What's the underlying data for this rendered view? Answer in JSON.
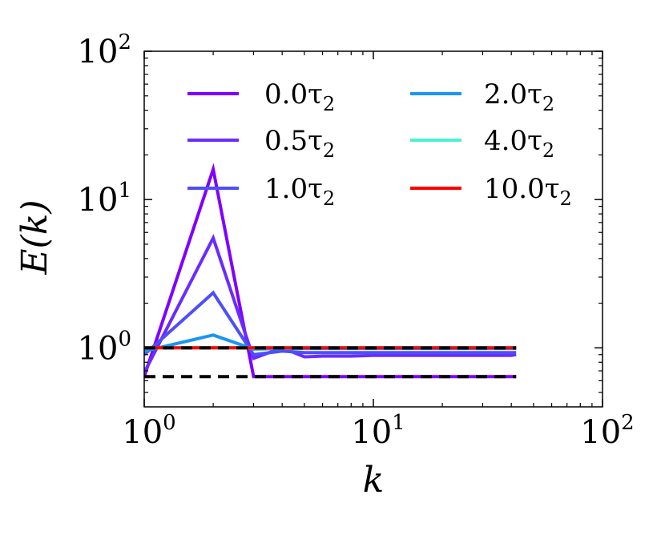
{
  "chart_data": {
    "type": "line",
    "title": "",
    "xlabel": "k",
    "ylabel": "E(k)",
    "x_scale": "log",
    "y_scale": "log",
    "xlim": [
      1,
      100
    ],
    "ylim": [
      0.4,
      100
    ],
    "grid": false,
    "legend_placement": "top",
    "legend_columns": 2,
    "x_ticks": [
      {
        "value": 1,
        "base": "10",
        "exp": "0"
      },
      {
        "value": 10,
        "base": "10",
        "exp": "1"
      },
      {
        "value": 100,
        "base": "10",
        "exp": "2"
      }
    ],
    "y_ticks": [
      {
        "value": 1,
        "base": "10",
        "exp": "0"
      },
      {
        "value": 10,
        "base": "10",
        "exp": "1"
      },
      {
        "value": 100,
        "base": "10",
        "exp": "2"
      }
    ],
    "x": [
      1,
      2,
      3,
      4,
      5,
      6,
      7,
      8,
      10,
      12,
      15,
      20,
      25,
      30,
      35,
      40,
      42
    ],
    "series": [
      {
        "name": "0.0τ2",
        "label_main": "0.0τ",
        "label_sub": "2",
        "color": "#7f00ff",
        "values": [
          0.64,
          16.0,
          0.64,
          0.64,
          0.64,
          0.64,
          0.64,
          0.64,
          0.64,
          0.64,
          0.64,
          0.64,
          0.64,
          0.64,
          0.64,
          0.64,
          0.64
        ]
      },
      {
        "name": "0.5τ2",
        "label_main": "0.5τ",
        "label_sub": "2",
        "color": "#6a2cff",
        "values": [
          0.68,
          5.5,
          0.85,
          1.0,
          0.87,
          0.88,
          0.88,
          0.88,
          0.89,
          0.89,
          0.89,
          0.89,
          0.89,
          0.89,
          0.89,
          0.89,
          0.9
        ]
      },
      {
        "name": "1.0τ2",
        "label_main": "1.0τ",
        "label_sub": "2",
        "color": "#4d50f5",
        "values": [
          0.9,
          2.35,
          0.9,
          0.95,
          0.93,
          0.93,
          0.93,
          0.93,
          0.93,
          0.93,
          0.93,
          0.93,
          0.93,
          0.93,
          0.93,
          0.93,
          0.93
        ]
      },
      {
        "name": "2.0τ2",
        "label_main": "2.0τ",
        "label_sub": "2",
        "color": "#1996f0",
        "values": [
          0.95,
          1.22,
          0.98,
          0.99,
          0.99,
          0.99,
          0.99,
          0.99,
          0.99,
          0.99,
          0.99,
          0.99,
          0.99,
          0.99,
          0.99,
          0.99,
          0.99
        ]
      },
      {
        "name": "4.0τ2",
        "label_main": "4.0τ",
        "label_sub": "2",
        "color": "#4ff0d2",
        "values": [
          1.0,
          1.0,
          1.0,
          1.0,
          1.0,
          1.0,
          1.0,
          1.0,
          1.0,
          1.0,
          1.0,
          1.0,
          1.0,
          1.0,
          1.0,
          1.0,
          1.0
        ]
      },
      {
        "name": "10.0τ2",
        "label_main": "10.0τ",
        "label_sub": "2",
        "color": "#ff0000",
        "values": [
          1.0,
          1.0,
          1.0,
          1.0,
          1.0,
          1.0,
          1.0,
          1.0,
          1.0,
          1.0,
          1.0,
          1.0,
          1.0,
          1.0,
          1.0,
          1.0,
          1.0
        ]
      }
    ],
    "reference_lines": [
      {
        "y": 1.0,
        "x_start": 1,
        "x_end": 42,
        "style": "dashed",
        "color": "#000000"
      },
      {
        "y": 0.64,
        "x_start": 1,
        "x_end": 42,
        "style": "dashed",
        "color": "#000000"
      }
    ]
  }
}
